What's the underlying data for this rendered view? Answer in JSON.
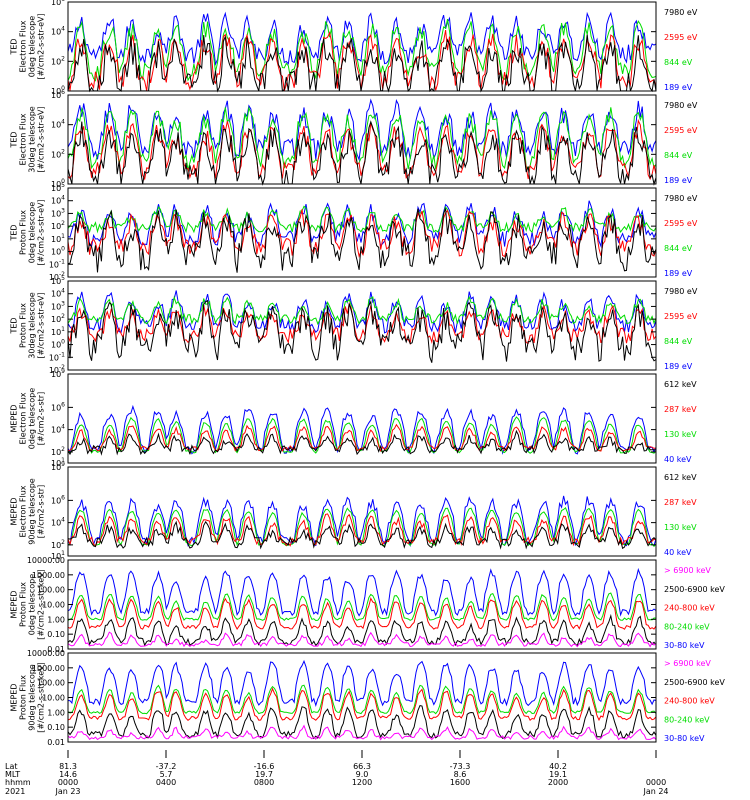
{
  "chart_data": [
    {
      "type": "line",
      "ylabel": [
        "TED",
        "Electron Flux",
        "0deg telescope",
        "[#/cm2-s-str-eV]"
      ],
      "scale": "log",
      "ylim": [
        1,
        1000000
      ],
      "yticks": [
        {
          "v": 1,
          "label": "10",
          "exp": "0"
        },
        {
          "v": 100,
          "label": "10",
          "exp": "2"
        },
        {
          "v": 10000,
          "label": "10",
          "exp": "4"
        },
        {
          "v": 1000000,
          "label": "10",
          "exp": "6"
        }
      ],
      "series": [
        {
          "name": "7980 eV",
          "color": "#000000",
          "base": 2,
          "peak": 1000,
          "noise": 20
        },
        {
          "name": "2595 eV",
          "color": "#ff0000",
          "base": 5,
          "peak": 3000,
          "noise": 8
        },
        {
          "name": "844 eV",
          "color": "#00dd00",
          "base": 20,
          "peak": 20000,
          "noise": 6
        },
        {
          "name": "189 eV",
          "color": "#0000ff",
          "base": 300,
          "peak": 60000,
          "noise": 8
        }
      ]
    },
    {
      "type": "line",
      "ylabel": [
        "TED",
        "Electron Flux",
        "30deg telescope",
        "[#/cm2-s-str-eV]"
      ],
      "scale": "log",
      "ylim": [
        1,
        1000000
      ],
      "yticks": [
        {
          "v": 1,
          "label": "10",
          "exp": "0"
        },
        {
          "v": 100,
          "label": "10",
          "exp": "2"
        },
        {
          "v": 10000,
          "label": "10",
          "exp": "4"
        },
        {
          "v": 1000000,
          "label": "10",
          "exp": "6"
        }
      ],
      "series": [
        {
          "name": "7980 eV",
          "color": "#000000",
          "base": 3,
          "peak": 2000,
          "noise": 15
        },
        {
          "name": "2595 eV",
          "color": "#ff0000",
          "base": 8,
          "peak": 5000,
          "noise": 6
        },
        {
          "name": "844 eV",
          "color": "#00dd00",
          "base": 30,
          "peak": 60000,
          "noise": 5
        },
        {
          "name": "189 eV",
          "color": "#0000ff",
          "base": 200,
          "peak": 100000,
          "noise": 8
        }
      ]
    },
    {
      "type": "line",
      "ylabel": [
        "TED",
        "Proton Flux",
        "0deg telescope",
        "[#/cm2-s-str-eV]"
      ],
      "scale": "log",
      "ylim": [
        0.01,
        100000
      ],
      "yticks": [
        {
          "v": 0.01,
          "label": "10",
          "exp": "-2"
        },
        {
          "v": 0.1,
          "label": "10",
          "exp": "-1"
        },
        {
          "v": 1,
          "label": "10",
          "exp": "0"
        },
        {
          "v": 10,
          "label": "10",
          "exp": "1"
        },
        {
          "v": 100,
          "label": "10",
          "exp": "2"
        },
        {
          "v": 1000,
          "label": "10",
          "exp": "3"
        },
        {
          "v": 10000,
          "label": "10",
          "exp": "4"
        },
        {
          "v": 100000,
          "label": "10",
          "exp": "5"
        }
      ],
      "series": [
        {
          "name": "7980 eV",
          "color": "#000000",
          "base": 0.3,
          "peak": 300,
          "noise": 30
        },
        {
          "name": "2595 eV",
          "color": "#ff0000",
          "base": 2,
          "peak": 500,
          "noise": 8
        },
        {
          "name": "844 eV",
          "color": "#00dd00",
          "base": 80,
          "peak": 2000,
          "noise": 3
        },
        {
          "name": "189 eV",
          "color": "#0000ff",
          "base": 10,
          "peak": 3000,
          "noise": 6
        }
      ]
    },
    {
      "type": "line",
      "ylabel": [
        "TED",
        "Proton Flux",
        "30deg telescope",
        "[#/cm2-s-str-eV]"
      ],
      "scale": "log",
      "ylim": [
        0.01,
        100000
      ],
      "yticks": [
        {
          "v": 0.01,
          "label": "10",
          "exp": "-2"
        },
        {
          "v": 0.1,
          "label": "10",
          "exp": "-1"
        },
        {
          "v": 1,
          "label": "10",
          "exp": "0"
        },
        {
          "v": 10,
          "label": "10",
          "exp": "1"
        },
        {
          "v": 100,
          "label": "10",
          "exp": "2"
        },
        {
          "v": 1000,
          "label": "10",
          "exp": "3"
        },
        {
          "v": 10000,
          "label": "10",
          "exp": "4"
        },
        {
          "v": 100000,
          "label": "10",
          "exp": "5"
        }
      ],
      "series": [
        {
          "name": "7980 eV",
          "color": "#000000",
          "base": 0.5,
          "peak": 300,
          "noise": 30
        },
        {
          "name": "2595 eV",
          "color": "#ff0000",
          "base": 5,
          "peak": 500,
          "noise": 6
        },
        {
          "name": "844 eV",
          "color": "#00dd00",
          "base": 100,
          "peak": 3000,
          "noise": 3
        },
        {
          "name": "189 eV",
          "color": "#0000ff",
          "base": 30,
          "peak": 5000,
          "noise": 5
        }
      ]
    },
    {
      "type": "line",
      "ylabel": [
        "MEPED",
        "Electron Flux",
        "0deg telescope",
        "[#/cm2-s-str]"
      ],
      "scale": "log",
      "ylim": [
        10,
        1000000000
      ],
      "yticks": [
        {
          "v": 10,
          "label": "10",
          "exp": "1"
        },
        {
          "v": 100,
          "label": "10",
          "exp": "2"
        },
        {
          "v": 10000,
          "label": "10",
          "exp": "4"
        },
        {
          "v": 1000000,
          "label": "10",
          "exp": "6"
        },
        {
          "v": 1000000000,
          "label": "10",
          "exp": "9"
        }
      ],
      "series": [
        {
          "name": "612 keV",
          "color": "#000000",
          "base": 150,
          "peak": 3000,
          "noise": 3
        },
        {
          "name": "287 keV",
          "color": "#ff0000",
          "base": 200,
          "peak": 20000,
          "noise": 2
        },
        {
          "name": "130 keV",
          "color": "#00dd00",
          "base": 100,
          "peak": 100000,
          "noise": 1.5
        },
        {
          "name": "40 keV",
          "color": "#0000ff",
          "base": 150,
          "peak": 600000,
          "noise": 3
        }
      ]
    },
    {
      "type": "line",
      "ylabel": [
        "MEPED",
        "Electron Flux",
        "90deg telescope",
        "[#/cm2-s-str]"
      ],
      "scale": "log",
      "ylim": [
        10,
        1000000000
      ],
      "yticks": [
        {
          "v": 10,
          "label": "10",
          "exp": "1"
        },
        {
          "v": 100,
          "label": "10",
          "exp": "2"
        },
        {
          "v": 10000,
          "label": "10",
          "exp": "4"
        },
        {
          "v": 1000000,
          "label": "10",
          "exp": "6"
        },
        {
          "v": 1000000000,
          "label": "10",
          "exp": "9"
        }
      ],
      "series": [
        {
          "name": "612 keV",
          "color": "#000000",
          "base": 150,
          "peak": 5000,
          "noise": 4
        },
        {
          "name": "287 keV",
          "color": "#ff0000",
          "base": 200,
          "peak": 30000,
          "noise": 3
        },
        {
          "name": "130 keV",
          "color": "#00dd00",
          "base": 100,
          "peak": 200000,
          "noise": 1.5
        },
        {
          "name": "40 keV",
          "color": "#0000ff",
          "base": 200,
          "peak": 1000000,
          "noise": 4
        }
      ]
    },
    {
      "type": "line",
      "ylabel": [
        "MEPED",
        "Proton Flux",
        "0deg telescope",
        "[#/cm2-s-str-keV]"
      ],
      "scale": "log",
      "ylim": [
        0.01,
        10000
      ],
      "yticks": [
        {
          "v": 0.01,
          "label": "0.01"
        },
        {
          "v": 0.1,
          "label": "0.10"
        },
        {
          "v": 1,
          "label": "1.00"
        },
        {
          "v": 10,
          "label": "10.00"
        },
        {
          "v": 100,
          "label": "100.00"
        },
        {
          "v": 1000,
          "label": "1000.00"
        },
        {
          "v": 10000,
          "label": "10000.00"
        }
      ],
      "series": [
        {
          "name": "> 6900 keV",
          "color": "#ff00ff",
          "base": 0.02,
          "peak": 0.08,
          "noise": 1.5
        },
        {
          "name": "2500-6900 keV",
          "color": "#000000",
          "base": 0.03,
          "peak": 1,
          "noise": 2
        },
        {
          "name": "240-800 keV",
          "color": "#ff0000",
          "base": 0.3,
          "peak": 20,
          "noise": 1.5
        },
        {
          "name": "80-240 keV",
          "color": "#00dd00",
          "base": 1,
          "peak": 50,
          "noise": 1.3
        },
        {
          "name": "30-80 keV",
          "color": "#0000ff",
          "base": 3,
          "peak": 1500,
          "noise": 2
        }
      ]
    },
    {
      "type": "line",
      "ylabel": [
        "MEPED",
        "Proton Flux",
        "90deg telescope",
        "[#/cm2-s-str-keV]"
      ],
      "scale": "log",
      "ylim": [
        0.01,
        10000
      ],
      "yticks": [
        {
          "v": 0.01,
          "label": "0.01"
        },
        {
          "v": 0.1,
          "label": "0.10"
        },
        {
          "v": 1,
          "label": "1.00"
        },
        {
          "v": 10,
          "label": "10.00"
        },
        {
          "v": 100,
          "label": "100.00"
        },
        {
          "v": 1000,
          "label": "1000.00"
        },
        {
          "v": 10000,
          "label": "10000.00"
        }
      ],
      "series": [
        {
          "name": "> 6900 keV",
          "color": "#ff00ff",
          "base": 0.02,
          "peak": 0.08,
          "noise": 1.5
        },
        {
          "name": "2500-6900 keV",
          "color": "#000000",
          "base": 0.03,
          "peak": 2,
          "noise": 2
        },
        {
          "name": "240-800 keV",
          "color": "#ff0000",
          "base": 0.4,
          "peak": 30,
          "noise": 1.5
        },
        {
          "name": "80-240 keV",
          "color": "#00dd00",
          "base": 1,
          "peak": 60,
          "noise": 1.3
        },
        {
          "name": "30-80 keV",
          "color": "#0000ff",
          "base": 5,
          "peak": 2000,
          "noise": 2
        }
      ]
    }
  ],
  "xaxis": {
    "row_labels": [
      "Lat",
      "MLT",
      "hhmm",
      "2021"
    ],
    "ticks": [
      {
        "time": "0000",
        "lat": "81.3",
        "mlt": "14.6",
        "date": "Jan 23"
      },
      {
        "time": "0400",
        "lat": "-37.2",
        "mlt": "5.7",
        "date": ""
      },
      {
        "time": "0800",
        "lat": "-16.6",
        "mlt": "19.7",
        "date": ""
      },
      {
        "time": "1200",
        "lat": "66.3",
        "mlt": "9.0",
        "date": ""
      },
      {
        "time": "1600",
        "lat": "-73.3",
        "mlt": "8.6",
        "date": ""
      },
      {
        "time": "2000",
        "lat": "40.2",
        "mlt": "19.1",
        "date": ""
      },
      {
        "time": "0000",
        "lat": "",
        "mlt": "",
        "date": "Jan 24"
      }
    ]
  }
}
